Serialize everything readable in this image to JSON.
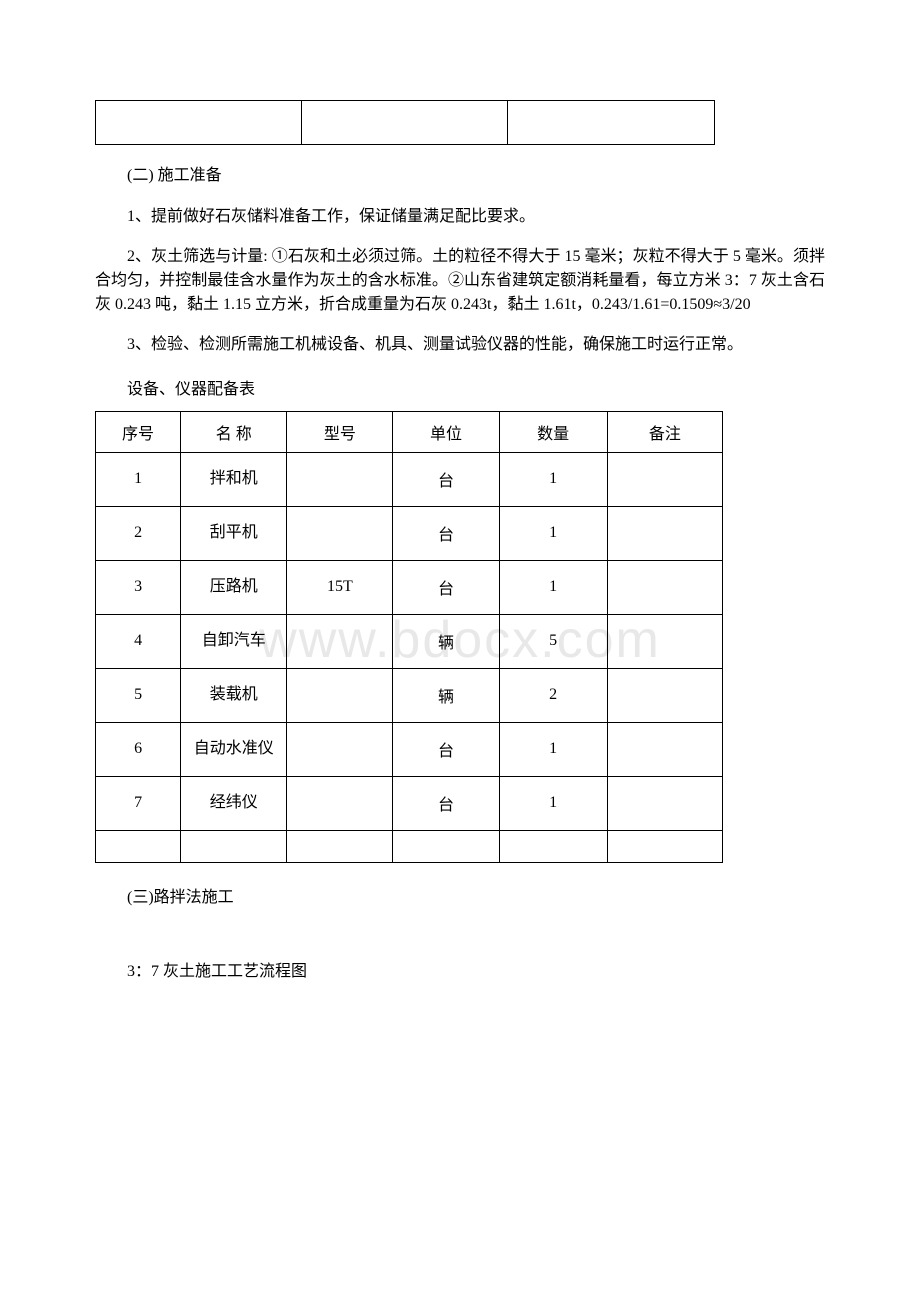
{
  "watermark": "www.bdocx.com",
  "section2": {
    "heading": "(二) 施工准备",
    "para1": "1、提前做好石灰储料准备工作，保证储量满足配比要求。",
    "para2": "2、灰土筛选与计量: ①石灰和土必须过筛。土的粒径不得大于 15 毫米；灰粒不得大于 5 毫米。须拌合均匀，并控制最佳含水量作为灰土的含水标准。②山东省建筑定额消耗量看，每立方米 3：7 灰土含石灰 0.243 吨，黏土 1.15 立方米，折合成重量为石灰 0.243t，黏土 1.61t，0.243/1.61=0.1509≈3/20",
    "para3": "3、检验、检测所需施工机械设备、机具、测量试验仪器的性能，确保施工时运行正常。",
    "tableCaption": "设备、仪器配备表"
  },
  "equipTable": {
    "headers": {
      "seq": "序号",
      "name": "名 称",
      "model": "型号",
      "unit": "单位",
      "qty": "数量",
      "note": "备注"
    },
    "rows": [
      {
        "seq": "1",
        "name": "拌和机",
        "model": "",
        "unit": "台",
        "qty": "1",
        "note": ""
      },
      {
        "seq": "2",
        "name": "刮平机",
        "model": "",
        "unit": "台",
        "qty": "1",
        "note": ""
      },
      {
        "seq": "3",
        "name": "压路机",
        "model": "15T",
        "unit": "台",
        "qty": "1",
        "note": ""
      },
      {
        "seq": "4",
        "name": "自卸汽车",
        "model": "",
        "unit": "辆",
        "qty": "5",
        "note": ""
      },
      {
        "seq": "5",
        "name": "装载机",
        "model": "",
        "unit": "辆",
        "qty": "2",
        "note": ""
      },
      {
        "seq": "6",
        "name": "自动水准仪",
        "model": "",
        "unit": "台",
        "qty": "1",
        "note": ""
      },
      {
        "seq": "7",
        "name": "经纬仪",
        "model": "",
        "unit": "台",
        "qty": "1",
        "note": ""
      }
    ]
  },
  "section3": {
    "heading": "(三)路拌法施工",
    "flowchartTitle": "3：7 灰土施工工艺流程图"
  }
}
